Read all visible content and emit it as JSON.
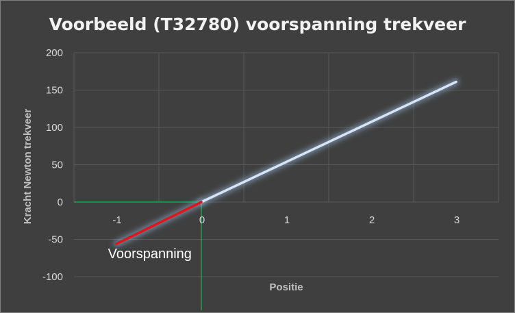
{
  "colors": {
    "background": "#3f3f3f",
    "border": "#7f7f7f",
    "gridline": "#595959",
    "main_line": "#d6e4f5",
    "glow": "#9ec3ea",
    "preload_line": "#e1131b",
    "green_guide": "#17a84a"
  },
  "chart_data": {
    "type": "line",
    "title": "Voorbeeld (T32780) voorspanning trekveer",
    "xlabel": "Positie",
    "ylabel": "Kracht Newton trekveer",
    "xlim": [
      -1.5,
      3.5
    ],
    "ylim": [
      -100,
      200
    ],
    "x_ticks": [
      -1,
      0,
      1,
      2,
      3
    ],
    "x_tick_labels": [
      "-1",
      "0",
      "1",
      "2",
      "3"
    ],
    "y_ticks": [
      200,
      150,
      100,
      50,
      0,
      -50,
      -100
    ],
    "y_tick_labels": [
      "200",
      "150",
      "100",
      "50",
      "0",
      "-50",
      "-100"
    ],
    "grid": true,
    "series": [
      {
        "points": [
          [
            0,
            0
          ],
          [
            3,
            161
          ]
        ],
        "color": "#d6e4f5"
      },
      {
        "points": [
          [
            -1,
            -56
          ],
          [
            0,
            0
          ]
        ],
        "color": "#e1131b"
      }
    ],
    "guide_lines": [
      {
        "orientation": "horizontal",
        "value": 0,
        "from": -1.5,
        "to": 0,
        "color": "#17a84a"
      },
      {
        "orientation": "vertical",
        "value": 0,
        "from": -145,
        "to": 0,
        "color": "#17a84a"
      }
    ],
    "annotations": [
      {
        "text": "Voorspanning",
        "x": -1.1,
        "y": -69
      }
    ]
  }
}
